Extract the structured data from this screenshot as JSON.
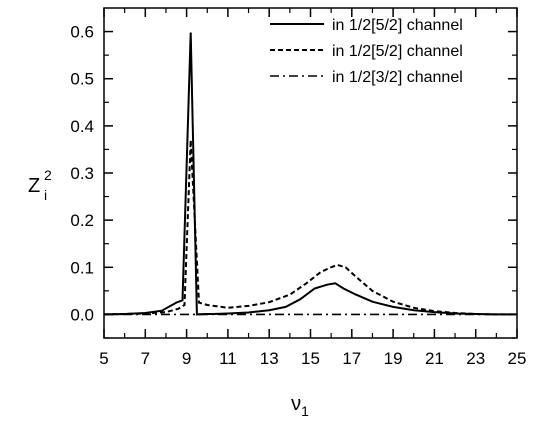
{
  "chart_data": {
    "type": "line",
    "title": "",
    "xlabel": "ν",
    "xlabel_sub": "1",
    "ylabel": "Z",
    "ylabel_sup": "2",
    "ylabel_sub": "i",
    "xlim": [
      5,
      25
    ],
    "ylim": [
      -0.05,
      0.65
    ],
    "xticks": [
      5,
      7,
      9,
      11,
      13,
      15,
      17,
      19,
      21,
      23,
      25
    ],
    "xtick_labels": [
      "5",
      "7",
      "9",
      "11",
      "13",
      "15",
      "17",
      "19",
      "21",
      "23",
      "25"
    ],
    "yticks": [
      0.0,
      0.1,
      0.2,
      0.3,
      0.4,
      0.5,
      0.6
    ],
    "ytick_labels": [
      "0.0",
      "0.1",
      "0.2",
      "0.3",
      "0.4",
      "0.5",
      "0.6"
    ],
    "grid": false,
    "legend_position": "top-right",
    "series": [
      {
        "name": "in 1/2[5/2] channel",
        "style": "solid",
        "x": [
          5.0,
          6.0,
          7.0,
          7.8,
          8.5,
          8.8,
          9.2,
          9.5,
          9.9,
          10.3,
          11.0,
          12.0,
          13.0,
          13.8,
          14.5,
          15.2,
          15.8,
          16.2,
          16.6,
          17.2,
          18.0,
          19.0,
          20.0,
          21.0,
          22.0,
          23.0,
          24.0,
          25.0
        ],
        "values": [
          0.0,
          0.001,
          0.003,
          0.008,
          0.025,
          0.03,
          0.598,
          0.0,
          0.001,
          0.001,
          0.002,
          0.004,
          0.009,
          0.016,
          0.032,
          0.055,
          0.063,
          0.066,
          0.055,
          0.042,
          0.027,
          0.016,
          0.009,
          0.005,
          0.002,
          0.001,
          0.0,
          0.0
        ]
      },
      {
        "name": "in 1/2[5/2] channel",
        "style": "dashed",
        "x": [
          5.0,
          6.0,
          7.0,
          8.0,
          8.6,
          8.9,
          9.2,
          9.6,
          10.0,
          11.0,
          12.0,
          13.0,
          14.0,
          14.8,
          15.5,
          16.0,
          16.3,
          16.7,
          17.2,
          18.0,
          19.0,
          20.0,
          21.0,
          22.0,
          23.0,
          24.0,
          25.0
        ],
        "values": [
          0.0,
          0.001,
          0.002,
          0.005,
          0.012,
          0.02,
          0.37,
          0.025,
          0.02,
          0.014,
          0.018,
          0.026,
          0.042,
          0.066,
          0.09,
          0.1,
          0.105,
          0.1,
          0.08,
          0.05,
          0.027,
          0.014,
          0.007,
          0.003,
          0.001,
          0.0,
          0.0
        ]
      },
      {
        "name": "in 1/2[3/2] channel",
        "style": "dashdot",
        "x": [
          5.0,
          25.0
        ],
        "values": [
          0.0,
          0.0
        ]
      }
    ]
  }
}
